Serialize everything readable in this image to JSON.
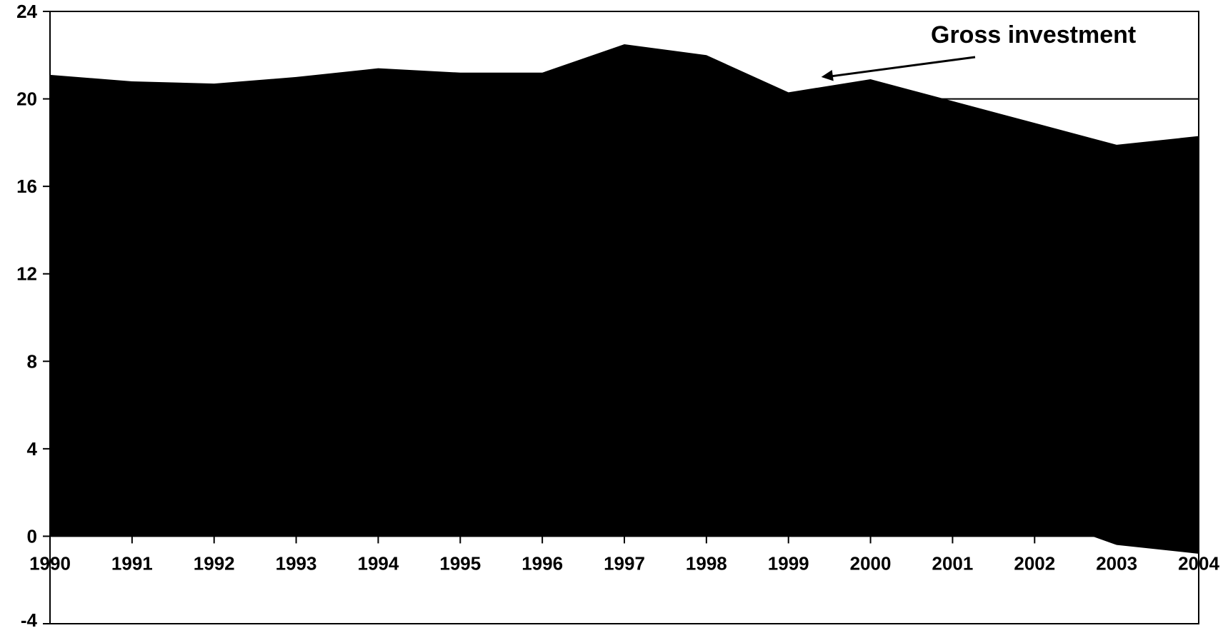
{
  "chart_data": {
    "type": "area",
    "title": "",
    "xlabel": "",
    "ylabel": "",
    "xlim": [
      1990,
      2004
    ],
    "ylim": [
      -4,
      24
    ],
    "y_ticks": [
      24,
      20,
      16,
      12,
      8,
      4,
      0,
      -4
    ],
    "x_ticks": [
      "1990",
      "1991",
      "1992",
      "1993",
      "1994",
      "1995",
      "1996",
      "1997",
      "1998",
      "1999",
      "2000",
      "2001",
      "2002",
      "2003",
      "2004"
    ],
    "grid": false,
    "reference_line_y": 20,
    "series": [
      {
        "name": "Gross investment",
        "x": [
          1990,
          1991,
          1992,
          1993,
          1994,
          1995,
          1996,
          1997,
          1997.6,
          1998,
          1999,
          2000,
          2001,
          2002,
          2003,
          2004
        ],
        "values": [
          21.1,
          20.8,
          20.7,
          21.0,
          21.4,
          21.2,
          21.2,
          22.5,
          22.2,
          22.0,
          20.3,
          20.9,
          19.9,
          18.9,
          17.9,
          18.3
        ]
      },
      {
        "name": "",
        "x": [
          1990,
          2002.7,
          2003,
          2004
        ],
        "values": [
          0,
          0,
          -0.4,
          -0.8
        ]
      }
    ],
    "annotations": [
      {
        "text": "Gross investment",
        "points_to": {
          "x": 1999.4,
          "y": 21.0
        }
      }
    ],
    "fill_color": "#000000",
    "line_color": "#000000"
  }
}
